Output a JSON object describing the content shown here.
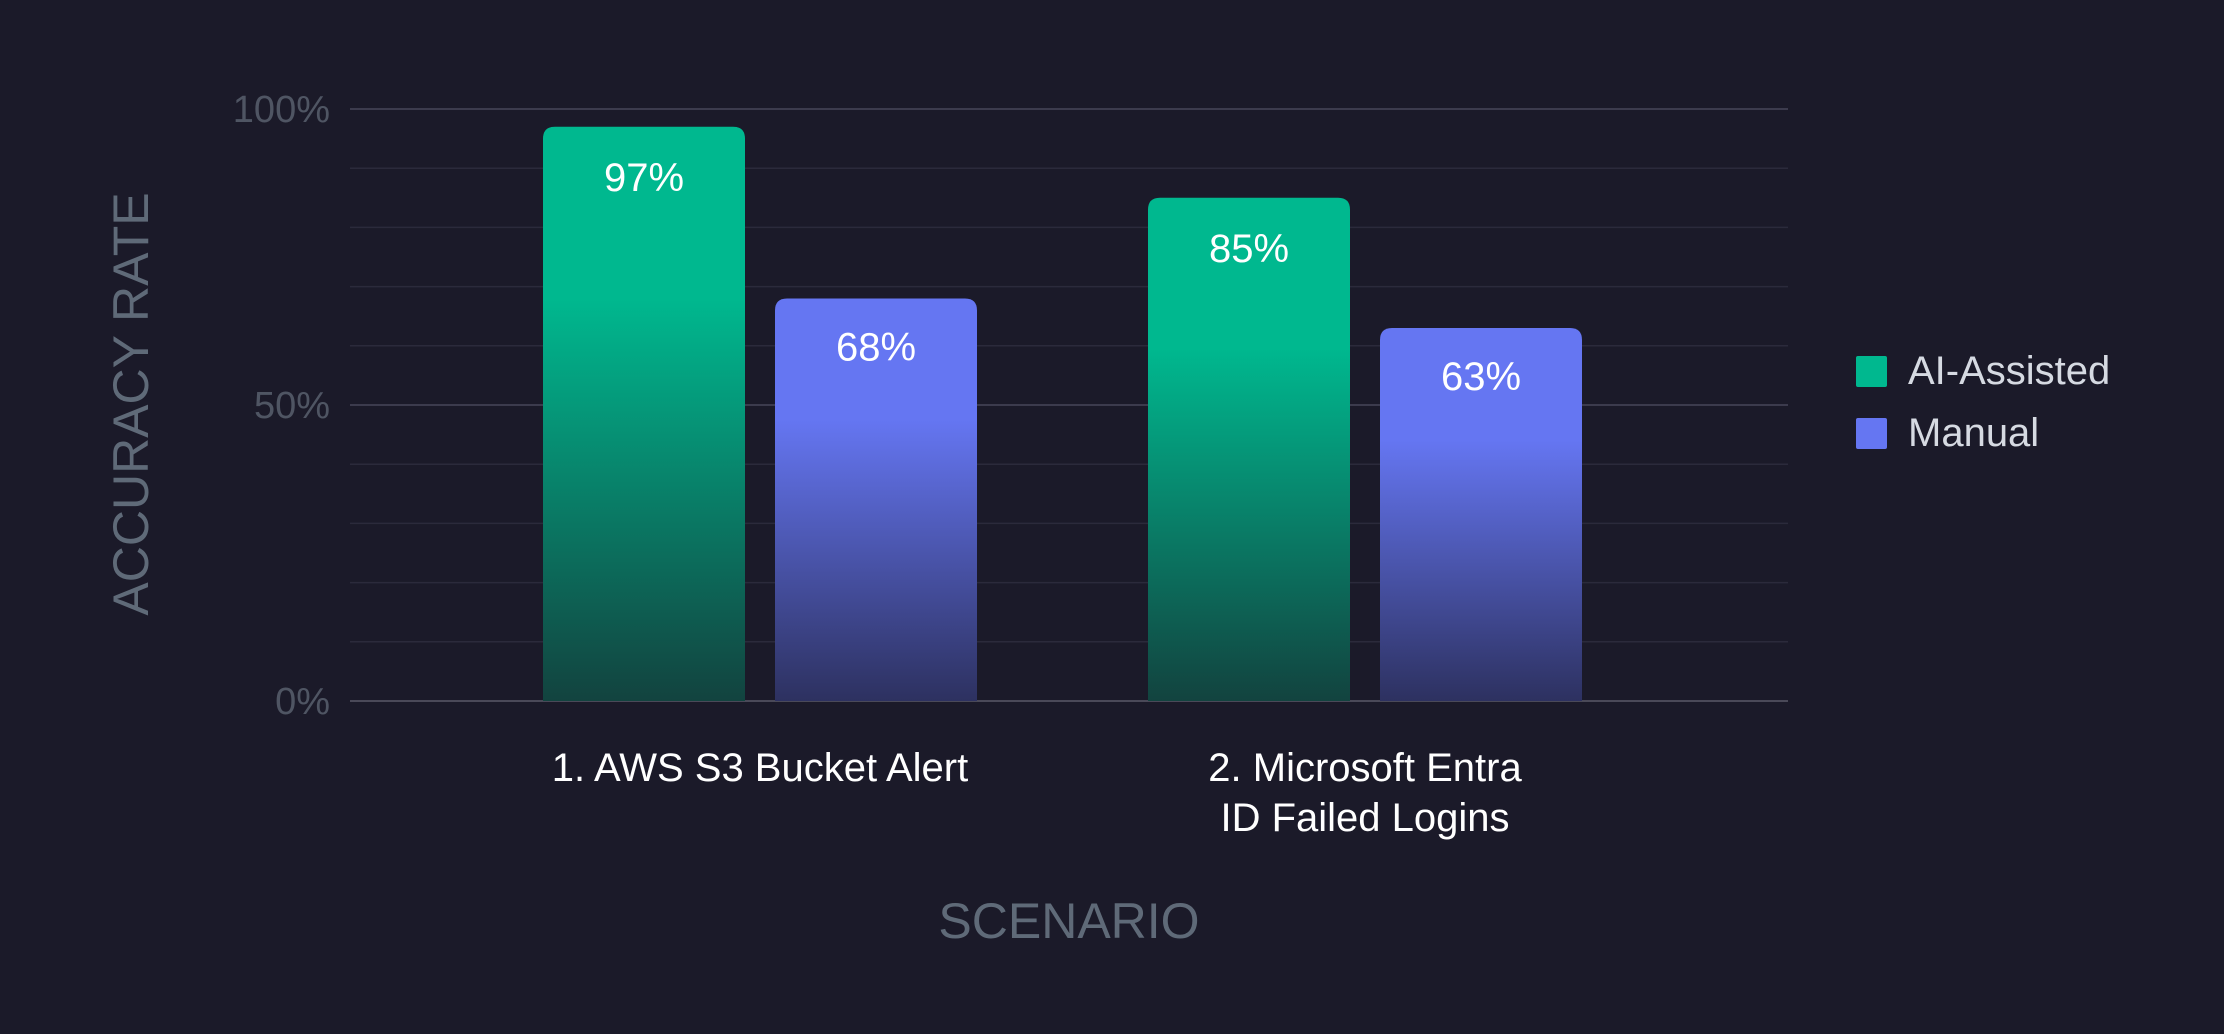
{
  "chart_data": {
    "type": "bar",
    "title": "",
    "xlabel": "SCENARIO",
    "ylabel": "ACCURACY RATE",
    "ylim": [
      0,
      100
    ],
    "yticks": [
      {
        "value": 0,
        "label": "0%"
      },
      {
        "value": 50,
        "label": "50%"
      },
      {
        "value": 100,
        "label": "100%"
      }
    ],
    "minor_grid_step": 10,
    "grid": true,
    "legend_position": "right",
    "categories": [
      [
        "1. AWS S3 Bucket Alert"
      ],
      [
        "2. Microsoft Entra",
        "ID Failed Logins"
      ]
    ],
    "series": [
      {
        "name": "AI-Assisted",
        "color": "#00b88f",
        "values": [
          97,
          85
        ],
        "labels": [
          "97%",
          "85%"
        ]
      },
      {
        "name": "Manual",
        "color": "#6576f2",
        "values": [
          68,
          63
        ],
        "labels": [
          "68%",
          "63%"
        ]
      }
    ]
  }
}
